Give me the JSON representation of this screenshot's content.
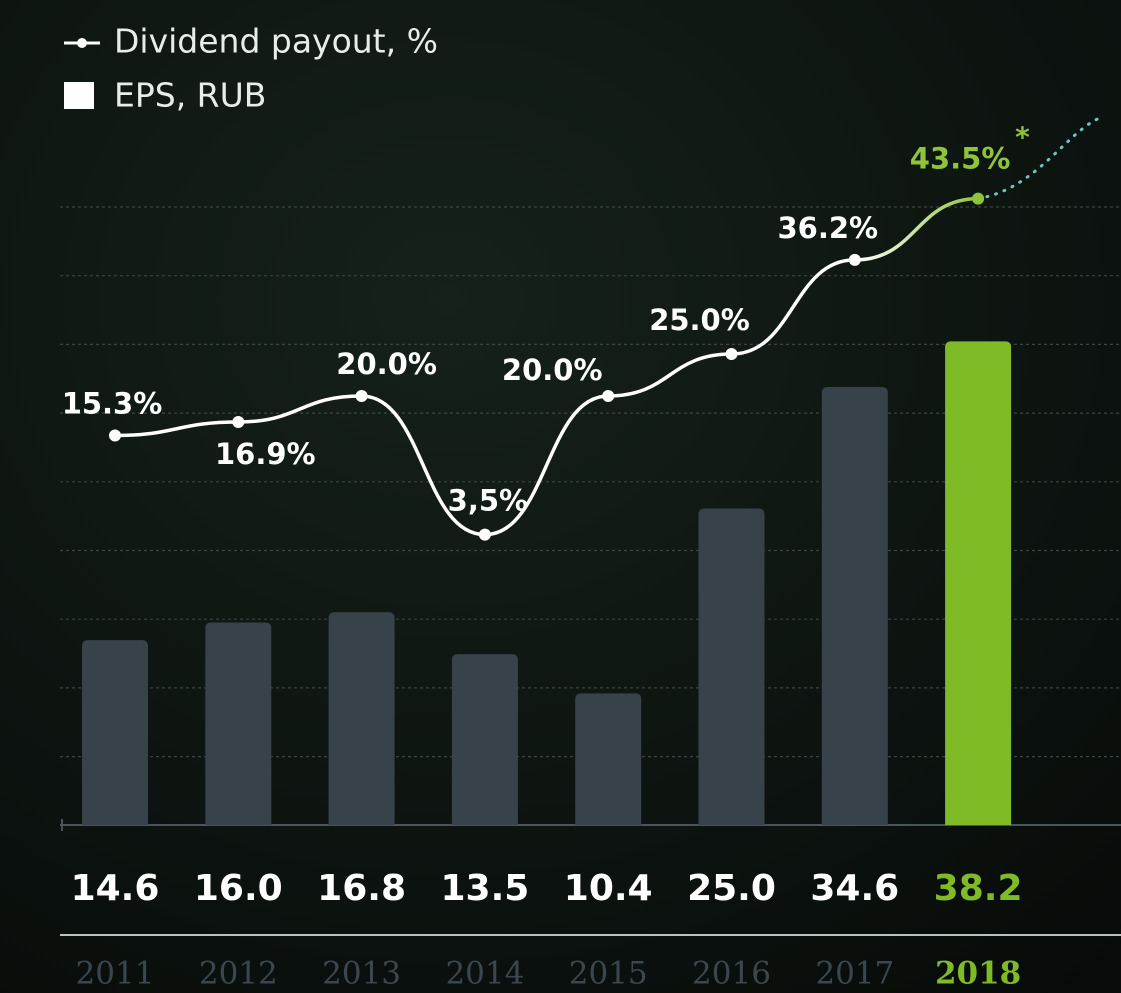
{
  "chart_data": {
    "type": "bar_line",
    "categories": [
      "2011",
      "2012",
      "2013",
      "2014",
      "2015",
      "2016",
      "2017",
      "2018"
    ],
    "series": [
      {
        "name": "EPS, RUB",
        "type": "bar",
        "color": "#37424a",
        "colors": [
          "#37424a",
          "#37424a",
          "#37424a",
          "#37424a",
          "#37424a",
          "#37424a",
          "#37424a",
          "#7fba27"
        ],
        "values": [
          14.6,
          16.0,
          16.8,
          13.5,
          10.4,
          25.0,
          34.6,
          38.2
        ],
        "value_labels": [
          "14.6",
          "16.0",
          "16.8",
          "13.5",
          "10.4",
          "25.0",
          "34.6",
          "38.2"
        ]
      },
      {
        "name": "Dividend payout, %",
        "type": "line",
        "axis": "y2",
        "color": "#ffffff",
        "colors": [
          "#ffffff",
          "#ffffff",
          "#ffffff",
          "#ffffff",
          "#ffffff",
          "#ffffff",
          "#ffffff",
          "#8fc43a"
        ],
        "values": [
          15.3,
          16.9,
          20.0,
          3.5,
          20.0,
          25.0,
          36.2,
          43.5
        ],
        "value_labels": [
          "15.3%",
          "16.9%",
          "20.0%",
          "3,5%",
          "20.0%",
          "25.0%",
          "36.2%",
          "43.5%"
        ]
      }
    ],
    "annotations": [
      "*"
    ],
    "ylim": [
      0,
      50
    ],
    "y2lim": [
      0,
      50
    ],
    "grid": true
  }
}
